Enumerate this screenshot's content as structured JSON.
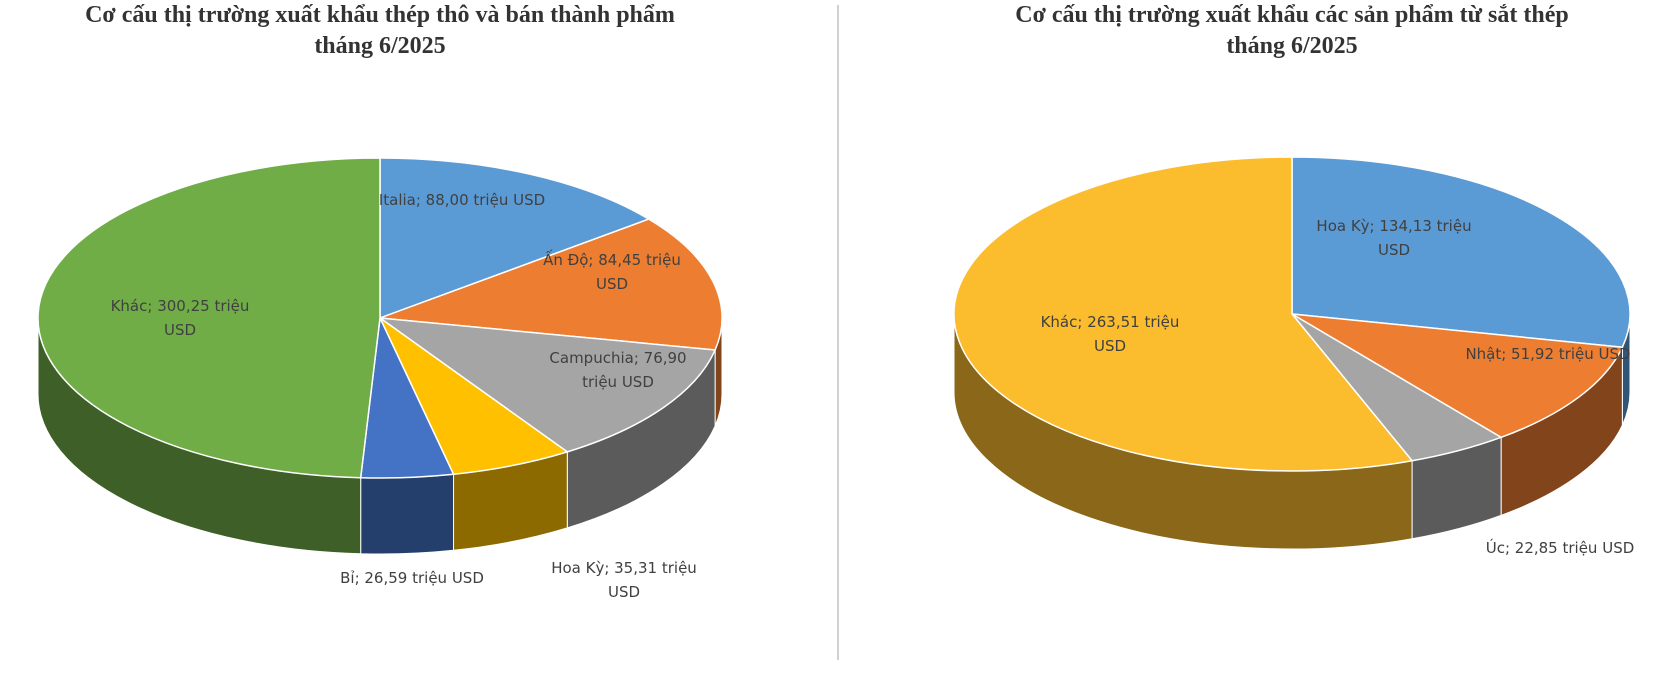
{
  "chart_data": [
    {
      "type": "pie",
      "title": "Cơ cấu thị trường xuất khẩu thép thô và bán thành phẩm\ntháng 6/2025",
      "values": [
        88.0,
        84.45,
        76.9,
        35.31,
        26.59,
        300.25
      ],
      "value_labels": [
        "Italia; 88,00 triệu USD",
        "Ấn Độ; 84,45 triệu USD",
        "Campuchia; 76,90 triệu USD",
        "Hoa Kỳ; 35,31 triệu USD",
        "Bỉ; 26,59 triệu USD",
        "Khác; 300,25 triệu USD"
      ],
      "colors": [
        "#5b9bd5",
        "#ed7d31",
        "#a5a5a5",
        "#ffc000",
        "#4472c4",
        "#70ad47"
      ]
    },
    {
      "type": "pie",
      "title": "Cơ cấu thị trường xuất khẩu các sản phẩm từ sắt thép\ntháng 6/2025",
      "values": [
        134.13,
        51.92,
        22.85,
        263.51
      ],
      "value_labels": [
        "Hoa Kỳ; 134,13 triệu USD",
        "Nhật; 51,92 triệu USD",
        "Úc; 22,85 triệu USD",
        "Khác; 263,51 triệu USD"
      ],
      "colors": [
        "#5b9bd5",
        "#ed7d31",
        "#a5a5a5",
        "#fbbc2e"
      ]
    }
  ]
}
